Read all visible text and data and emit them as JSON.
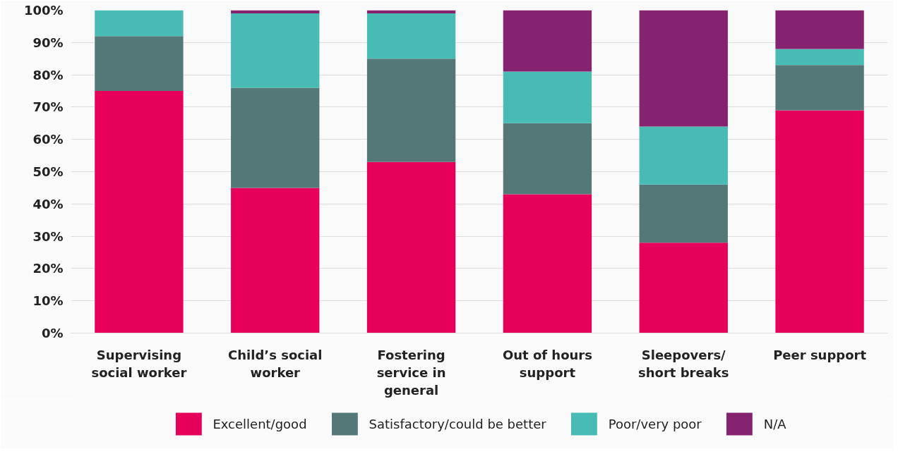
{
  "chart_data": {
    "type": "bar",
    "stacked": true,
    "categories": [
      "Supervising social worker",
      "Child’s social worker",
      "Fostering service in general",
      "Out of hours support",
      "Sleepovers/ short breaks",
      "Peer support"
    ],
    "series": [
      {
        "name": "Excellent/good",
        "color": "#e6005a",
        "values": [
          75,
          45,
          53,
          43,
          28,
          69
        ]
      },
      {
        "name": "Satisfactory/could be better",
        "color": "#547777",
        "values": [
          17,
          31,
          32,
          22,
          18,
          14
        ]
      },
      {
        "name": "Poor/very poor",
        "color": "#47bbb4",
        "values": [
          8,
          23,
          14,
          16,
          18,
          5
        ]
      },
      {
        "name": "N/A",
        "color": "#852370",
        "values": [
          0,
          1,
          1,
          19,
          36,
          12
        ]
      }
    ],
    "ylim": [
      0,
      100
    ],
    "yticks": [
      {
        "value": 0,
        "label": "0%"
      },
      {
        "value": 10,
        "label": "10%"
      },
      {
        "value": 20,
        "label": "20%"
      },
      {
        "value": 30,
        "label": "30%"
      },
      {
        "value": 40,
        "label": "40%"
      },
      {
        "value": 50,
        "label": "50%"
      },
      {
        "value": 60,
        "label": "60%"
      },
      {
        "value": 70,
        "label": "70%"
      },
      {
        "value": 80,
        "label": "80%"
      },
      {
        "value": 90,
        "label": "90%"
      },
      {
        "value": 100,
        "label": "100%"
      }
    ],
    "grid": "y",
    "legend": "bottom"
  }
}
